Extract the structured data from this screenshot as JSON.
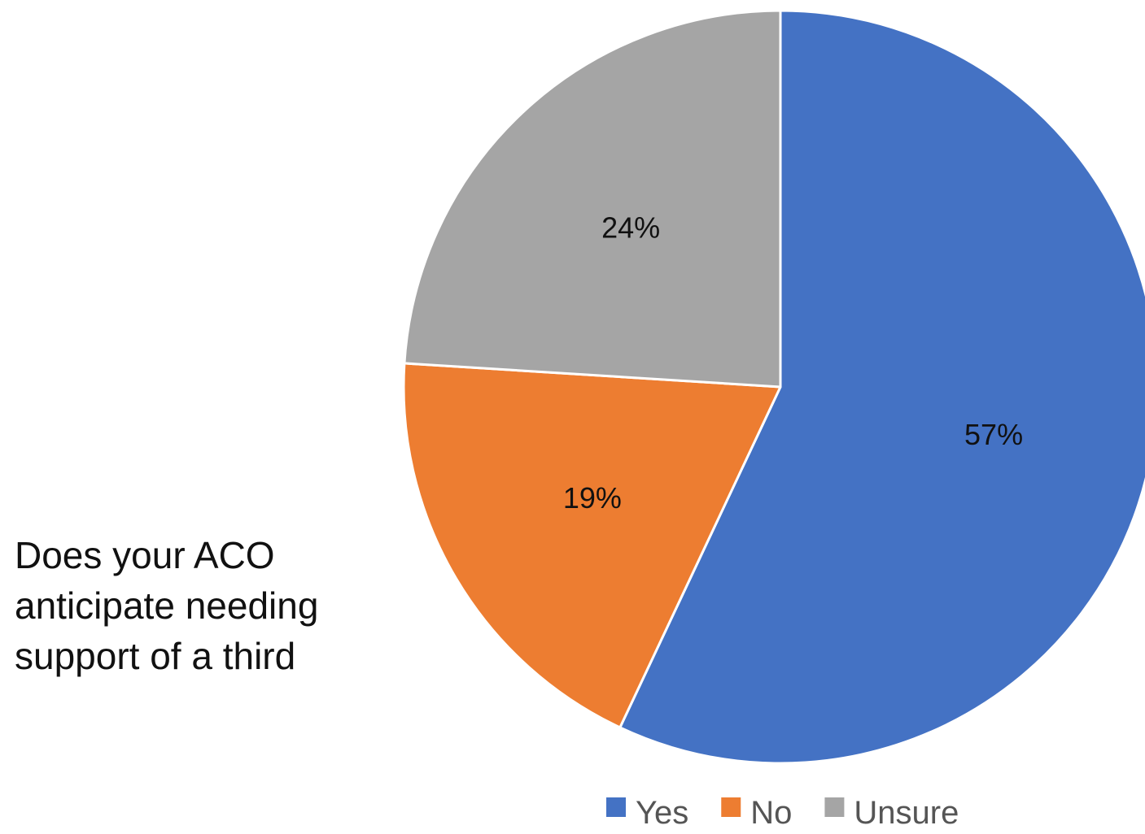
{
  "side_text": {
    "lines": [
      "Does your ACO",
      "anticipate needing",
      "support of a third"
    ]
  },
  "chart_data": {
    "type": "pie",
    "title": "",
    "categories": [
      "Yes",
      "No",
      "Unsure"
    ],
    "values": [
      57,
      19,
      24
    ],
    "data_labels": [
      "57%",
      "19%",
      "24%"
    ],
    "colors": [
      "#4472C4",
      "#ED7D31",
      "#A5A5A5"
    ],
    "start_angle_deg": 0,
    "direction": "clockwise",
    "legend": {
      "position": "bottom-right",
      "entries": [
        "Yes",
        "No",
        "Unsure"
      ]
    }
  }
}
